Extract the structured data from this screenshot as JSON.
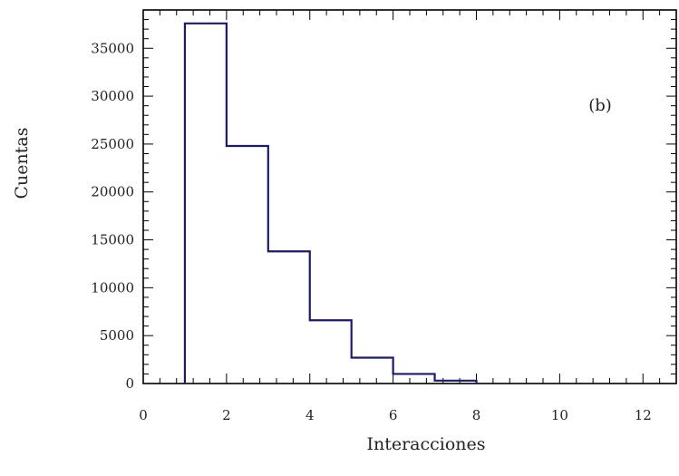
{
  "chart_data": {
    "type": "bar",
    "histogram": true,
    "bin_edges": [
      1,
      2,
      3,
      4,
      5,
      6,
      7,
      8
    ],
    "values": [
      37600,
      24800,
      13800,
      6600,
      2700,
      1000,
      300
    ],
    "xlabel": "Interacciones",
    "ylabel": "Cuentas",
    "annotation": "(b)",
    "xlim": [
      0,
      12.8
    ],
    "ylim": [
      0,
      39000
    ],
    "x_ticks": [
      0,
      2,
      4,
      6,
      8,
      10,
      12
    ],
    "x_tick_labels": [
      "0",
      "2",
      "4",
      "6",
      "8",
      "10",
      "12"
    ],
    "y_ticks": [
      0,
      5000,
      10000,
      15000,
      20000,
      25000,
      30000,
      35000
    ],
    "y_tick_labels": [
      "0",
      "5000",
      "10000",
      "15000",
      "20000",
      "25000",
      "30000",
      "35000"
    ],
    "grid": false,
    "line_color": "#1a1a6e"
  }
}
